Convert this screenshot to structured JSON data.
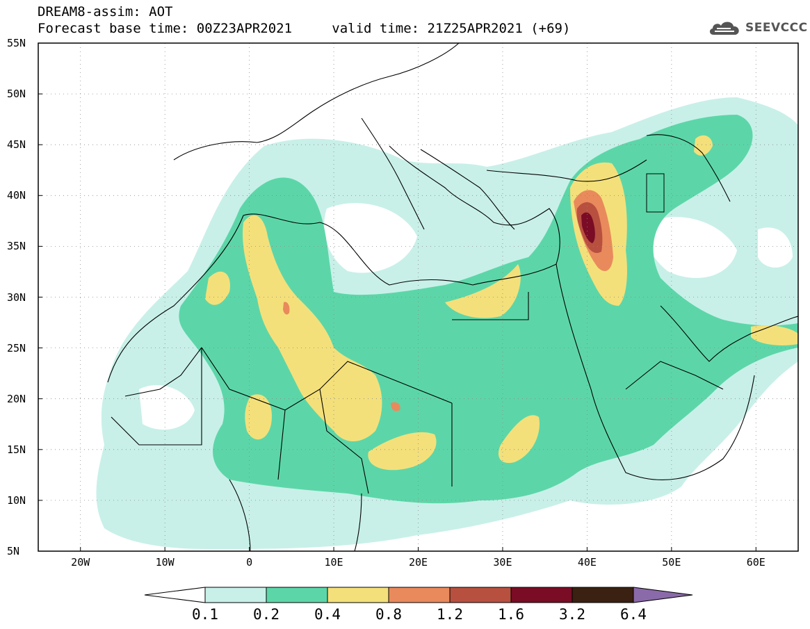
{
  "header": {
    "model_line": "DREAM8-assim: AOT",
    "base_time_label": "Forecast base time: 00Z23APR2021",
    "valid_time_label": "valid time: 21Z25APR2021 (+69)"
  },
  "logo": {
    "text": "SEEVCCC",
    "icon": "cloud-icon"
  },
  "map": {
    "lon_range": [
      -25,
      65
    ],
    "lat_range": [
      5,
      55
    ],
    "lat_ticks": [
      "55N",
      "50N",
      "45N",
      "40N",
      "35N",
      "30N",
      "25N",
      "20N",
      "15N",
      "10N",
      "5N"
    ],
    "lon_ticks": [
      "20W",
      "10W",
      "0",
      "10E",
      "20E",
      "30E",
      "40E",
      "50E",
      "60E"
    ],
    "variable": "Aerosol optical thickness (AOT)"
  },
  "colorbar": {
    "labels": [
      "0.1",
      "0.2",
      "0.4",
      "0.8",
      "1.2",
      "1.6",
      "3.2",
      "6.4"
    ],
    "colors": [
      "#c8f0e8",
      "#5cd6a8",
      "#f4e07a",
      "#e98a5c",
      "#b85040",
      "#7a0c25",
      "#3a2112",
      "#8a6aa8"
    ]
  }
}
